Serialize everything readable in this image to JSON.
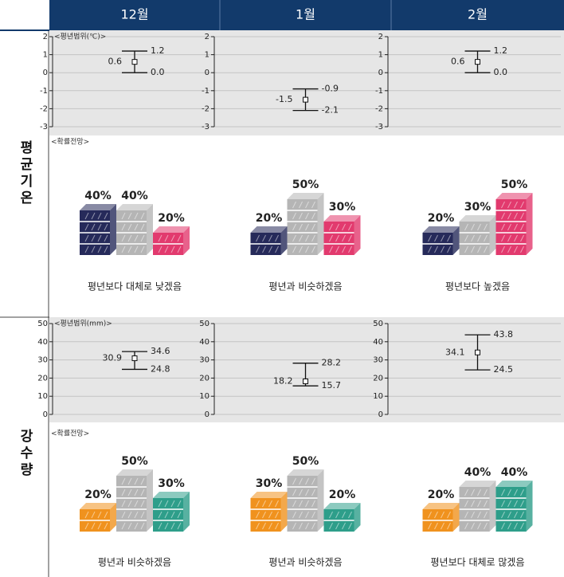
{
  "header": {
    "months": [
      "12월",
      "1월",
      "2월"
    ]
  },
  "sections": [
    {
      "label": "평균기온",
      "range": {
        "type": "errorbar",
        "note": "<평년범위(℃)>",
        "ylim": [
          -3,
          2
        ],
        "yticks": [
          2,
          1,
          0,
          -1,
          -2,
          -3
        ],
        "points": [
          {
            "values": [
              0.6,
              0.0,
              1.2
            ],
            "value_labels": [
              "0.6",
              "0.0",
              "1.2"
            ]
          },
          {
            "values": [
              -1.5,
              -2.1,
              -0.9
            ],
            "value_labels": [
              "-1.5",
              "-2.1",
              "-0.9"
            ]
          },
          {
            "values": [
              0.6,
              0.0,
              1.2
            ],
            "value_labels": [
              "0.6",
              "0.0",
              "1.2"
            ]
          }
        ]
      },
      "outlook": {
        "type": "stacked-blocks",
        "note": "<확률전망>",
        "colors": [
          "#262a5a",
          "#b5b5b5",
          "#e23a6e"
        ],
        "months": [
          {
            "values": [
              40,
              40,
              20
            ],
            "value_labels": [
              "40%",
              "40%",
              "20%"
            ],
            "caption": "평년보다 대체로 낮겠음"
          },
          {
            "values": [
              20,
              50,
              30
            ],
            "value_labels": [
              "20%",
              "50%",
              "30%"
            ],
            "caption": "평년과 비슷하겠음"
          },
          {
            "values": [
              20,
              30,
              50
            ],
            "value_labels": [
              "20%",
              "30%",
              "50%"
            ],
            "caption": "평년보다 높겠음"
          }
        ]
      }
    },
    {
      "label": "강수량",
      "range": {
        "type": "errorbar",
        "note": "<평년범위(mm)>",
        "ylim": [
          0,
          50
        ],
        "yticks": [
          50,
          40,
          30,
          20,
          10,
          0
        ],
        "points": [
          {
            "values": [
              30.9,
              24.8,
              34.6
            ],
            "value_labels": [
              "30.9",
              "24.8",
              "34.6"
            ]
          },
          {
            "values": [
              18.2,
              15.7,
              28.2
            ],
            "value_labels": [
              "18.2",
              "15.7",
              "28.2"
            ]
          },
          {
            "values": [
              34.1,
              24.5,
              43.8
            ],
            "value_labels": [
              "34.1",
              "24.5",
              "43.8"
            ]
          }
        ]
      },
      "outlook": {
        "type": "stacked-blocks",
        "note": "<확률전망>",
        "colors": [
          "#f0921e",
          "#b5b5b5",
          "#2e9e8a"
        ],
        "months": [
          {
            "values": [
              20,
              50,
              30
            ],
            "value_labels": [
              "20%",
              "50%",
              "30%"
            ],
            "caption": "평년과 비슷하겠음"
          },
          {
            "values": [
              30,
              50,
              20
            ],
            "value_labels": [
              "30%",
              "50%",
              "20%"
            ],
            "caption": "평년과 비슷하겠음"
          },
          {
            "values": [
              20,
              40,
              40
            ],
            "value_labels": [
              "20%",
              "40%",
              "40%"
            ],
            "caption": "평년보다 대체로 많겠음"
          }
        ]
      }
    }
  ]
}
